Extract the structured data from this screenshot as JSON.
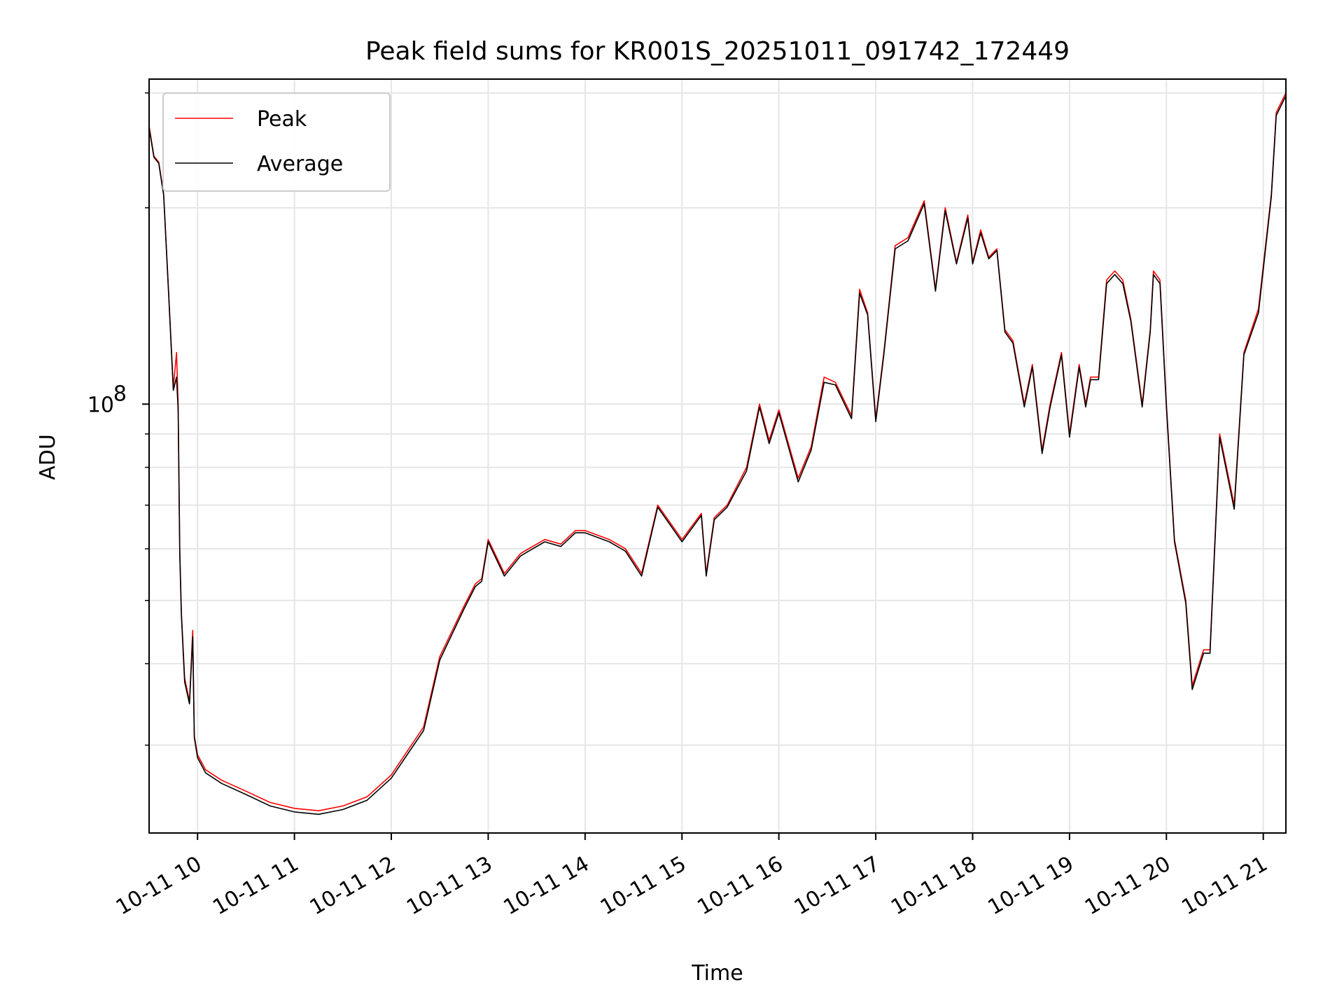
{
  "chart_data": {
    "type": "line",
    "title": "Peak field sums for KR001S_20251011_091742_172449",
    "xlabel": "Time",
    "ylabel": "ADU",
    "y_scale": "log",
    "ylim": [
      22000000,
      315000000
    ],
    "xlim": [
      "2025-10-11 09:30",
      "2025-10-11 21:14"
    ],
    "grid": true,
    "legend": "top-left",
    "x_ticks": [
      "10-11 10",
      "10-11 11",
      "10-11 12",
      "10-11 13",
      "10-11 14",
      "10-11 15",
      "10-11 16",
      "10-11 17",
      "10-11 18",
      "10-11 19",
      "10-11 20",
      "10-11 21"
    ],
    "y_ticks": [
      {
        "value": 100000000,
        "label": "10",
        "exp": "8"
      }
    ],
    "series": [
      {
        "name": "Peak",
        "color": "#ff0000",
        "x": [
          "2025-10-11 09:30",
          "2025-10-11 09:33",
          "2025-10-11 09:36",
          "2025-10-11 09:39",
          "2025-10-11 09:42",
          "2025-10-11 09:45",
          "2025-10-11 09:47",
          "2025-10-11 09:48",
          "2025-10-11 09:49",
          "2025-10-11 09:50",
          "2025-10-11 09:52",
          "2025-10-11 09:55",
          "2025-10-11 09:57",
          "2025-10-11 09:58",
          "2025-10-11 10:00",
          "2025-10-11 10:05",
          "2025-10-11 10:15",
          "2025-10-11 10:30",
          "2025-10-11 10:45",
          "2025-10-11 11:00",
          "2025-10-11 11:15",
          "2025-10-11 11:30",
          "2025-10-11 11:45",
          "2025-10-11 12:00",
          "2025-10-11 12:20",
          "2025-10-11 12:30",
          "2025-10-11 12:45",
          "2025-10-11 12:52",
          "2025-10-11 12:56",
          "2025-10-11 13:00",
          "2025-10-11 13:10",
          "2025-10-11 13:20",
          "2025-10-11 13:25",
          "2025-10-11 13:35",
          "2025-10-11 13:45",
          "2025-10-11 13:54",
          "2025-10-11 14:00",
          "2025-10-11 14:15",
          "2025-10-11 14:25",
          "2025-10-11 14:35",
          "2025-10-11 14:45",
          "2025-10-11 15:00",
          "2025-10-11 15:12",
          "2025-10-11 15:15",
          "2025-10-11 15:20",
          "2025-10-11 15:28",
          "2025-10-11 15:40",
          "2025-10-11 15:48",
          "2025-10-11 15:54",
          "2025-10-11 16:00",
          "2025-10-11 16:12",
          "2025-10-11 16:20",
          "2025-10-11 16:28",
          "2025-10-11 16:35",
          "2025-10-11 16:45",
          "2025-10-11 16:50",
          "2025-10-11 16:55",
          "2025-10-11 17:00",
          "2025-10-11 17:05",
          "2025-10-11 17:12",
          "2025-10-11 17:20",
          "2025-10-11 17:30",
          "2025-10-11 17:37",
          "2025-10-11 17:43",
          "2025-10-11 17:50",
          "2025-10-11 17:57",
          "2025-10-11 18:00",
          "2025-10-11 18:05",
          "2025-10-11 18:10",
          "2025-10-11 18:15",
          "2025-10-11 18:20",
          "2025-10-11 18:25",
          "2025-10-11 18:32",
          "2025-10-11 18:37",
          "2025-10-11 18:43",
          "2025-10-11 18:48",
          "2025-10-11 18:55",
          "2025-10-11 19:00",
          "2025-10-11 19:06",
          "2025-10-11 19:10",
          "2025-10-11 19:13",
          "2025-10-11 19:18",
          "2025-10-11 19:23",
          "2025-10-11 19:28",
          "2025-10-11 19:33",
          "2025-10-11 19:38",
          "2025-10-11 19:45",
          "2025-10-11 19:50",
          "2025-10-11 19:52",
          "2025-10-11 19:56",
          "2025-10-11 20:00",
          "2025-10-11 20:05",
          "2025-10-11 20:12",
          "2025-10-11 20:16",
          "2025-10-11 20:23",
          "2025-10-11 20:27",
          "2025-10-11 20:33",
          "2025-10-11 20:42",
          "2025-10-11 20:48",
          "2025-10-11 20:57",
          "2025-10-11 21:05",
          "2025-10-11 21:08",
          "2025-10-11 21:14"
        ],
        "y": [
          267000000,
          240000000,
          235000000,
          210000000,
          150000000,
          106000000,
          120000000,
          100000000,
          60000000,
          48000000,
          38000000,
          35000000,
          45000000,
          31000000,
          29000000,
          27500000,
          26500000,
          25500000,
          24500000,
          24000000,
          23800000,
          24200000,
          25000000,
          27000000,
          32000000,
          41000000,
          49000000,
          53000000,
          54000000,
          62000000,
          55000000,
          59000000,
          60000000,
          62000000,
          61000000,
          64000000,
          64000000,
          62000000,
          60000000,
          55000000,
          70000000,
          62000000,
          68000000,
          55000000,
          67000000,
          70000000,
          80000000,
          100000000,
          88000000,
          98000000,
          77000000,
          86000000,
          110000000,
          108000000,
          96000000,
          150000000,
          138000000,
          95000000,
          120000000,
          175000000,
          180000000,
          205000000,
          150000000,
          200000000,
          165000000,
          195000000,
          165000000,
          185000000,
          168000000,
          173000000,
          130000000,
          125000000,
          100000000,
          115000000,
          85000000,
          100000000,
          120000000,
          90000000,
          115000000,
          100000000,
          110000000,
          110000000,
          155000000,
          160000000,
          155000000,
          135000000,
          100000000,
          130000000,
          160000000,
          155000000,
          100000000,
          62000000,
          50000000,
          37000000,
          42000000,
          42000000,
          90000000,
          70000000,
          120000000,
          140000000,
          210000000,
          280000000,
          300000000
        ]
      },
      {
        "name": "Average",
        "color": "#000000",
        "x": [
          "2025-10-11 09:30",
          "2025-10-11 09:33",
          "2025-10-11 09:36",
          "2025-10-11 09:39",
          "2025-10-11 09:42",
          "2025-10-11 09:45",
          "2025-10-11 09:47",
          "2025-10-11 09:48",
          "2025-10-11 09:49",
          "2025-10-11 09:50",
          "2025-10-11 09:52",
          "2025-10-11 09:55",
          "2025-10-11 09:57",
          "2025-10-11 09:58",
          "2025-10-11 10:00",
          "2025-10-11 10:05",
          "2025-10-11 10:15",
          "2025-10-11 10:30",
          "2025-10-11 10:45",
          "2025-10-11 11:00",
          "2025-10-11 11:15",
          "2025-10-11 11:30",
          "2025-10-11 11:45",
          "2025-10-11 12:00",
          "2025-10-11 12:20",
          "2025-10-11 12:30",
          "2025-10-11 12:45",
          "2025-10-11 12:52",
          "2025-10-11 12:56",
          "2025-10-11 13:00",
          "2025-10-11 13:10",
          "2025-10-11 13:20",
          "2025-10-11 13:25",
          "2025-10-11 13:35",
          "2025-10-11 13:45",
          "2025-10-11 13:54",
          "2025-10-11 14:00",
          "2025-10-11 14:15",
          "2025-10-11 14:25",
          "2025-10-11 14:35",
          "2025-10-11 14:45",
          "2025-10-11 15:00",
          "2025-10-11 15:12",
          "2025-10-11 15:15",
          "2025-10-11 15:20",
          "2025-10-11 15:28",
          "2025-10-11 15:40",
          "2025-10-11 15:48",
          "2025-10-11 15:54",
          "2025-10-11 16:00",
          "2025-10-11 16:12",
          "2025-10-11 16:20",
          "2025-10-11 16:28",
          "2025-10-11 16:35",
          "2025-10-11 16:45",
          "2025-10-11 16:50",
          "2025-10-11 16:55",
          "2025-10-11 17:00",
          "2025-10-11 17:05",
          "2025-10-11 17:12",
          "2025-10-11 17:20",
          "2025-10-11 17:30",
          "2025-10-11 17:37",
          "2025-10-11 17:43",
          "2025-10-11 17:50",
          "2025-10-11 17:57",
          "2025-10-11 18:00",
          "2025-10-11 18:05",
          "2025-10-11 18:10",
          "2025-10-11 18:15",
          "2025-10-11 18:20",
          "2025-10-11 18:25",
          "2025-10-11 18:32",
          "2025-10-11 18:37",
          "2025-10-11 18:43",
          "2025-10-11 18:48",
          "2025-10-11 18:55",
          "2025-10-11 19:00",
          "2025-10-11 19:06",
          "2025-10-11 19:10",
          "2025-10-11 19:13",
          "2025-10-11 19:18",
          "2025-10-11 19:23",
          "2025-10-11 19:28",
          "2025-10-11 19:33",
          "2025-10-11 19:38",
          "2025-10-11 19:45",
          "2025-10-11 19:50",
          "2025-10-11 19:52",
          "2025-10-11 19:56",
          "2025-10-11 20:00",
          "2025-10-11 20:05",
          "2025-10-11 20:12",
          "2025-10-11 20:16",
          "2025-10-11 20:23",
          "2025-10-11 20:27",
          "2025-10-11 20:33",
          "2025-10-11 20:42",
          "2025-10-11 20:48",
          "2025-10-11 20:57",
          "2025-10-11 21:05",
          "2025-10-11 21:08",
          "2025-10-11 21:14"
        ],
        "y": [
          265000000,
          239000000,
          234000000,
          209000000,
          149000000,
          105000000,
          110000000,
          98000000,
          59000000,
          47500000,
          37500000,
          34700000,
          44000000,
          30800000,
          28700000,
          27200000,
          26200000,
          25200000,
          24200000,
          23700000,
          23500000,
          23900000,
          24700000,
          26700000,
          31600000,
          40500000,
          48500000,
          52500000,
          53500000,
          61500000,
          54500000,
          58500000,
          59500000,
          61500000,
          60500000,
          63500000,
          63500000,
          61500000,
          59500000,
          54500000,
          69500000,
          61500000,
          67500000,
          54500000,
          66500000,
          69500000,
          79000000,
          99000000,
          87000000,
          97000000,
          76000000,
          85000000,
          108000000,
          107000000,
          95000000,
          148000000,
          137000000,
          94000000,
          119000000,
          173000000,
          178000000,
          203000000,
          149000000,
          198000000,
          164000000,
          193000000,
          164000000,
          183000000,
          167000000,
          172000000,
          129000000,
          124000000,
          99000000,
          114000000,
          84000000,
          99000000,
          119000000,
          89000000,
          114000000,
          99000000,
          109000000,
          109000000,
          153000000,
          158000000,
          153000000,
          134000000,
          99000000,
          129000000,
          158000000,
          153000000,
          99000000,
          61500000,
          49500000,
          36500000,
          41500000,
          41500000,
          89000000,
          69000000,
          119000000,
          138000000,
          208000000,
          277000000,
          297000000
        ]
      }
    ]
  }
}
